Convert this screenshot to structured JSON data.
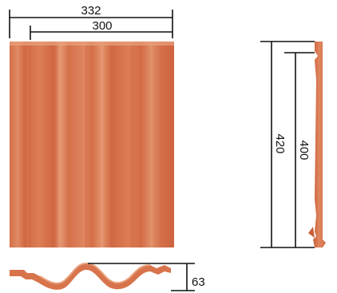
{
  "dimensions": {
    "overall_width": "332",
    "cover_width": "300",
    "overall_length": "420",
    "cover_length": "400",
    "profile_height": "63"
  },
  "colors": {
    "tile_base": "#d9774f",
    "tile_light": "#e59a74",
    "tile_dark": "#c0593a",
    "line": "#111111",
    "background": "#ffffff"
  }
}
